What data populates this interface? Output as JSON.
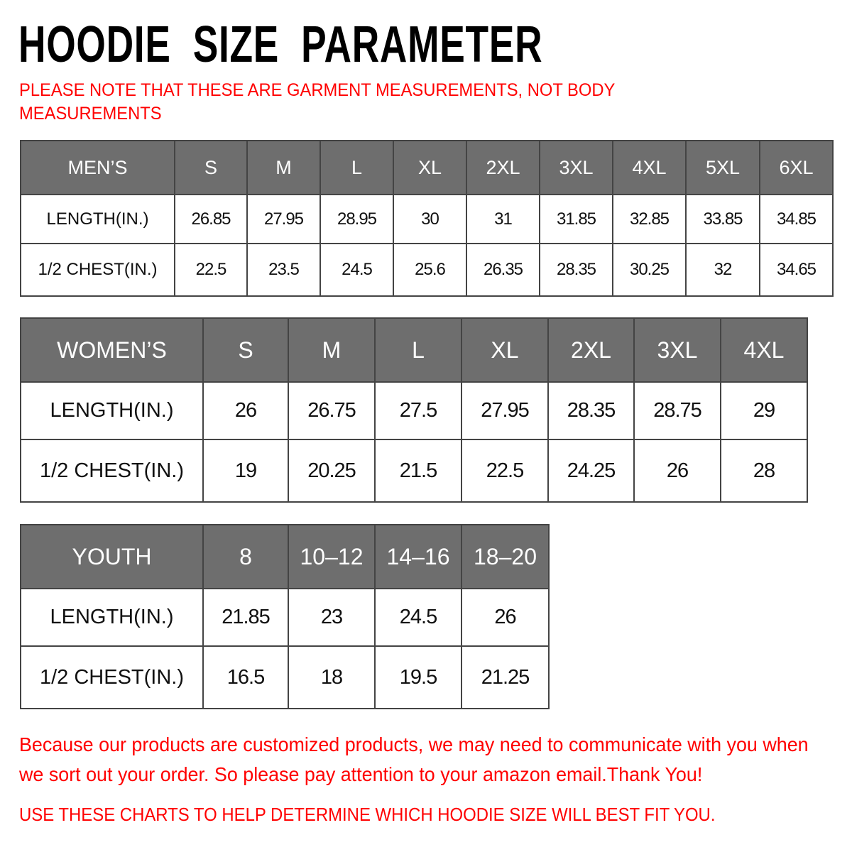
{
  "title": "HOODIE  SIZE  PARAMETER",
  "note": "PLEASE NOTE THAT THESE ARE GARMENT MEASUREMENTS, NOT BODY MEASUREMENTS",
  "colors": {
    "header_bg": "#6e6e6e",
    "accent_red": "#ff0000"
  },
  "tables": [
    {
      "label": "MEN’S",
      "sizes": [
        "S",
        "M",
        "L",
        "XL",
        "2XL",
        "3XL",
        "4XL",
        "5XL",
        "6XL"
      ],
      "rows": [
        {
          "label": "LENGTH(IN.)",
          "values": [
            "26.85",
            "27.95",
            "28.95",
            "30",
            "31",
            "31.85",
            "32.85",
            "33.85",
            "34.85"
          ]
        },
        {
          "label": "1/2 CHEST(IN.)",
          "values": [
            "22.5",
            "23.5",
            "24.5",
            "25.6",
            "26.35",
            "28.35",
            "30.25",
            "32",
            "34.65"
          ]
        }
      ]
    },
    {
      "label": "WOMEN’S",
      "sizes": [
        "S",
        "M",
        "L",
        "XL",
        "2XL",
        "3XL",
        "4XL"
      ],
      "rows": [
        {
          "label": "LENGTH(IN.)",
          "values": [
            "26",
            "26.75",
            "27.5",
            "27.95",
            "28.35",
            "28.75",
            "29"
          ]
        },
        {
          "label": "1/2 CHEST(IN.)",
          "values": [
            "19",
            "20.25",
            "21.5",
            "22.5",
            "24.25",
            "26",
            "28"
          ]
        }
      ]
    },
    {
      "label": "YOUTH",
      "sizes": [
        "8",
        "10–12",
        "14–16",
        "18–20"
      ],
      "rows": [
        {
          "label": "LENGTH(IN.)",
          "values": [
            "21.85",
            "23",
            "24.5",
            "26"
          ]
        },
        {
          "label": "1/2 CHEST(IN.)",
          "values": [
            "16.5",
            "18",
            "19.5",
            "21.25"
          ]
        }
      ]
    }
  ],
  "message": "Because our products are customized products, we may need to communicate with you when we sort out your order. So please pay attention to your amazon email.Thank You!",
  "footer": "USE THESE CHARTS TO HELP DETERMINE WHICH HOODIE SIZE WILL BEST FIT YOU."
}
